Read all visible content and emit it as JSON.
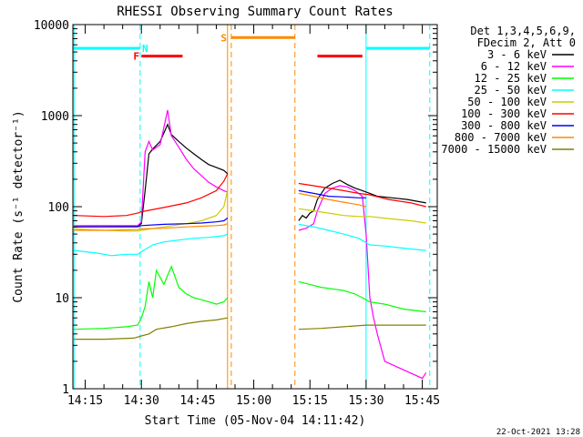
{
  "chart_data": {
    "type": "line",
    "title": "RHESSI Observing Summary Count Rates",
    "xlabel": "Start Time (05-Nov-04 14:11:42)",
    "ylabel": "Count Rate (s⁻¹ detector⁻¹)",
    "y_scale": "log",
    "ylim": [
      1,
      10000
    ],
    "xlim": [
      "14:11:42",
      "15:49:00"
    ],
    "y_ticks": [
      {
        "value": 1,
        "label": "1"
      },
      {
        "value": 10,
        "label": "10"
      },
      {
        "value": 100,
        "label": "100"
      },
      {
        "value": 1000,
        "label": "1000"
      },
      {
        "value": 10000,
        "label": "10000"
      }
    ],
    "x_ticks": [
      {
        "time": "14:15",
        "label": "14:15"
      },
      {
        "time": "14:30",
        "label": "14:30"
      },
      {
        "time": "14:45",
        "label": "14:45"
      },
      {
        "time": "15:00",
        "label": "15:00"
      },
      {
        "time": "15:15",
        "label": "15:15"
      },
      {
        "time": "15:30",
        "label": "15:30"
      },
      {
        "time": "15:45",
        "label": "15:45"
      }
    ],
    "legend": {
      "position": "right",
      "header": [
        "Det 1,3,4,5,6,9,",
        "FDecim 2, Att 0"
      ]
    },
    "series": [
      {
        "name": "3 - 6 keV",
        "color": "#000000",
        "points": [
          [
            "14:12",
            60
          ],
          [
            "14:29",
            61
          ],
          [
            "14:30",
            65
          ],
          [
            "14:31",
            150
          ],
          [
            "14:32",
            380
          ],
          [
            "14:33",
            430
          ],
          [
            "14:35",
            520
          ],
          [
            "14:37",
            800
          ],
          [
            "14:38",
            620
          ],
          [
            "14:40",
            520
          ],
          [
            "14:42",
            440
          ],
          [
            "14:44",
            380
          ],
          [
            "14:46",
            330
          ],
          [
            "14:48",
            290
          ],
          [
            "14:50",
            270
          ],
          [
            "14:52",
            250
          ],
          [
            "14:53",
            230
          ],
          null,
          [
            "15:12",
            70
          ],
          [
            "15:13",
            80
          ],
          [
            "15:14",
            75
          ],
          [
            "15:15",
            85
          ],
          [
            "15:16",
            90
          ],
          [
            "15:17",
            120
          ],
          [
            "15:19",
            160
          ],
          [
            "15:21",
            180
          ],
          [
            "15:23",
            195
          ],
          [
            "15:25",
            175
          ],
          [
            "15:27",
            160
          ],
          [
            "15:29",
            150
          ],
          [
            "15:31",
            140
          ],
          [
            "15:33",
            130
          ],
          [
            "15:37",
            125
          ],
          [
            "15:41",
            120
          ],
          [
            "15:45",
            112
          ],
          [
            "15:46",
            110
          ]
        ]
      },
      {
        "name": "6 - 12 keV",
        "color": "#ff00ff",
        "points": [
          [
            "14:12",
            62
          ],
          [
            "14:29",
            62
          ],
          [
            "14:30",
            68
          ],
          [
            "14:31",
            400
          ],
          [
            "14:32",
            520
          ],
          [
            "14:33",
            420
          ],
          [
            "14:35",
            480
          ],
          [
            "14:37",
            1150
          ],
          [
            "14:38",
            600
          ],
          [
            "14:40",
            450
          ],
          [
            "14:42",
            330
          ],
          [
            "14:44",
            260
          ],
          [
            "14:46",
            220
          ],
          [
            "14:48",
            185
          ],
          [
            "14:50",
            165
          ],
          [
            "14:52",
            150
          ],
          [
            "14:53",
            145
          ],
          null,
          [
            "15:12",
            55
          ],
          [
            "15:14",
            58
          ],
          [
            "15:16",
            65
          ],
          [
            "15:17",
            90
          ],
          [
            "15:19",
            140
          ],
          [
            "15:21",
            160
          ],
          [
            "15:23",
            170
          ],
          [
            "15:25",
            165
          ],
          [
            "15:27",
            150
          ],
          [
            "15:29",
            130
          ],
          [
            "15:30",
            50
          ],
          [
            "15:31",
            10
          ],
          [
            "15:32",
            6
          ],
          [
            "15:33",
            4
          ],
          [
            "15:35",
            2
          ],
          [
            "15:45",
            1.3
          ],
          [
            "15:46",
            1.5
          ]
        ]
      },
      {
        "name": "12 - 25 keV",
        "color": "#00ff00",
        "points": [
          [
            "14:12",
            4.5
          ],
          [
            "14:20",
            4.6
          ],
          [
            "14:26",
            4.8
          ],
          [
            "14:29",
            5
          ],
          [
            "14:30",
            6
          ],
          [
            "14:31",
            8
          ],
          [
            "14:32",
            15
          ],
          [
            "14:33",
            10
          ],
          [
            "14:34",
            20
          ],
          [
            "14:36",
            14
          ],
          [
            "14:38",
            22
          ],
          [
            "14:40",
            13
          ],
          [
            "14:42",
            11
          ],
          [
            "14:44",
            10
          ],
          [
            "14:46",
            9.5
          ],
          [
            "14:48",
            9
          ],
          [
            "14:50",
            8.5
          ],
          [
            "14:52",
            9
          ],
          [
            "14:53",
            10
          ],
          null,
          [
            "15:12",
            15
          ],
          [
            "15:15",
            14
          ],
          [
            "15:18",
            13
          ],
          [
            "15:21",
            12.5
          ],
          [
            "15:24",
            12
          ],
          [
            "15:27",
            11
          ],
          [
            "15:29",
            10
          ],
          [
            "15:31",
            9
          ],
          [
            "15:35",
            8.5
          ],
          [
            "15:40",
            7.5
          ],
          [
            "15:46",
            7
          ]
        ]
      },
      {
        "name": "25 - 50 keV",
        "color": "#00ffff",
        "points": [
          [
            "14:12",
            33
          ],
          [
            "14:18",
            31
          ],
          [
            "14:22",
            29
          ],
          [
            "14:26",
            30
          ],
          [
            "14:29",
            30
          ],
          [
            "14:30",
            32
          ],
          [
            "14:33",
            38
          ],
          [
            "14:36",
            41
          ],
          [
            "14:40",
            43
          ],
          [
            "14:44",
            45
          ],
          [
            "14:48",
            46
          ],
          [
            "14:52",
            48
          ],
          [
            "14:53",
            50
          ],
          null,
          [
            "15:12",
            64
          ],
          [
            "15:16",
            60
          ],
          [
            "15:20",
            55
          ],
          [
            "15:24",
            50
          ],
          [
            "15:28",
            45
          ],
          [
            "15:31",
            38
          ],
          [
            "15:35",
            37
          ],
          [
            "15:40",
            35
          ],
          [
            "15:46",
            33
          ]
        ]
      },
      {
        "name": "50 - 100 keV",
        "color": "#cccc00",
        "points": [
          [
            "14:12",
            57
          ],
          [
            "14:20",
            55
          ],
          [
            "14:26",
            54
          ],
          [
            "14:29",
            54
          ],
          [
            "14:30",
            55
          ],
          [
            "14:36",
            60
          ],
          [
            "14:42",
            65
          ],
          [
            "14:46",
            70
          ],
          [
            "14:50",
            80
          ],
          [
            "14:52",
            100
          ],
          [
            "14:53",
            150
          ],
          null,
          [
            "15:12",
            95
          ],
          [
            "15:16",
            90
          ],
          [
            "15:20",
            85
          ],
          [
            "15:24",
            80
          ],
          [
            "15:28",
            78
          ],
          [
            "15:31",
            78
          ],
          [
            "15:36",
            74
          ],
          [
            "15:42",
            70
          ],
          [
            "15:46",
            66
          ]
        ]
      },
      {
        "name": "100 - 300 keV",
        "color": "#ff0000",
        "points": [
          [
            "14:12",
            80
          ],
          [
            "14:20",
            78
          ],
          [
            "14:26",
            80
          ],
          [
            "14:29",
            85
          ],
          [
            "14:30",
            88
          ],
          [
            "14:36",
            98
          ],
          [
            "14:42",
            110
          ],
          [
            "14:46",
            125
          ],
          [
            "14:50",
            150
          ],
          [
            "14:52",
            190
          ],
          [
            "14:53",
            230
          ],
          null,
          [
            "15:12",
            180
          ],
          [
            "15:16",
            170
          ],
          [
            "15:20",
            160
          ],
          [
            "15:24",
            150
          ],
          [
            "15:28",
            140
          ],
          [
            "15:31",
            135
          ],
          [
            "15:36",
            120
          ],
          [
            "15:42",
            110
          ],
          [
            "15:46",
            100
          ]
        ]
      },
      {
        "name": "300 - 800 keV",
        "color": "#0000ff",
        "points": [
          [
            "14:12",
            60
          ],
          [
            "14:20",
            60
          ],
          [
            "14:29",
            60
          ],
          [
            "14:30",
            62
          ],
          [
            "14:36",
            64
          ],
          [
            "14:42",
            65
          ],
          [
            "14:46",
            66
          ],
          [
            "14:50",
            68
          ],
          [
            "14:52",
            70
          ],
          [
            "14:53",
            75
          ],
          null,
          [
            "15:12",
            150
          ],
          [
            "15:16",
            140
          ],
          [
            "15:20",
            130
          ],
          [
            "15:24",
            128
          ],
          [
            "15:28",
            125
          ],
          [
            "15:30",
            125
          ]
        ]
      },
      {
        "name": "800 - 7000 keV",
        "color": "#ff8800",
        "points": [
          [
            "14:12",
            55
          ],
          [
            "14:20",
            55
          ],
          [
            "14:29",
            56
          ],
          [
            "14:30",
            57
          ],
          [
            "14:36",
            58
          ],
          [
            "14:42",
            60
          ],
          [
            "14:46",
            61
          ],
          [
            "14:50",
            62
          ],
          [
            "14:52",
            63
          ],
          [
            "14:53",
            65
          ],
          null,
          [
            "15:12",
            140
          ],
          [
            "15:16",
            130
          ],
          [
            "15:20",
            120
          ],
          [
            "15:24",
            112
          ],
          [
            "15:28",
            105
          ],
          [
            "15:30",
            100
          ]
        ]
      },
      {
        "name": "7000 - 15000 keV",
        "color": "#808000",
        "points": [
          [
            "14:12",
            3.5
          ],
          [
            "14:20",
            3.5
          ],
          [
            "14:28",
            3.6
          ],
          [
            "14:30",
            3.8
          ],
          [
            "14:32",
            4
          ],
          [
            "14:34",
            4.5
          ],
          [
            "14:38",
            4.8
          ],
          [
            "14:42",
            5.2
          ],
          [
            "14:46",
            5.5
          ],
          [
            "14:50",
            5.7
          ],
          [
            "14:53",
            6
          ],
          null,
          [
            "15:12",
            4.5
          ],
          [
            "15:18",
            4.6
          ],
          [
            "15:24",
            4.8
          ],
          [
            "15:30",
            5
          ],
          [
            "15:36",
            5
          ],
          [
            "15:42",
            5
          ],
          [
            "15:46",
            5
          ]
        ]
      }
    ],
    "annotations": [
      {
        "id": "N",
        "label": "N",
        "color": "#00ffff",
        "y_level": 5500,
        "segments": [
          [
            "14:11:42",
            "14:29:40"
          ],
          [
            "15:30",
            "15:47"
          ]
        ],
        "label_time": "14:31",
        "dividers": [
          "14:29:40",
          "15:47"
        ]
      },
      {
        "id": "F",
        "label": "F",
        "color": "#ff0000",
        "y_level": 4500,
        "segments": [
          [
            "14:30",
            "14:41"
          ],
          [
            "15:17",
            "15:29"
          ]
        ],
        "label_time": "14:28:40",
        "dividers": []
      },
      {
        "id": "S",
        "label": "S",
        "color": "#ff8800",
        "y_level": 7200,
        "segments": [
          [
            "14:54",
            "15:11"
          ]
        ],
        "label_time": "14:52",
        "dividers": [
          "14:54",
          "15:11"
        ]
      }
    ],
    "night_markers": [
      "14:12",
      "15:30"
    ],
    "gap_markers": [
      "14:53"
    ],
    "date_stamp": "22-Oct-2021 13:28"
  }
}
